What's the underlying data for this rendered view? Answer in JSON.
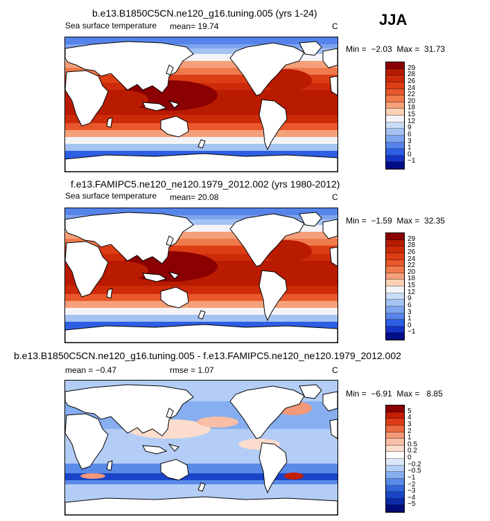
{
  "season": "JJA",
  "panels": [
    {
      "title": "b.e13.B1850C5CN.ne120_g16.tuning.005 (yrs 1-24)",
      "variable": "Sea surface temperature",
      "stat1": "mean=   19.74",
      "stat2": "",
      "units": "C",
      "minmax": "Min =  −2.03  Max =  31.73",
      "colorbar": {
        "labels": [
          "29",
          "28",
          "26",
          "24",
          "22",
          "20",
          "18",
          "15",
          "12",
          "9",
          "6",
          "3",
          "1",
          "0",
          "−1"
        ],
        "colors": [
          "#8b0000",
          "#b81b00",
          "#cc2a08",
          "#dd3d14",
          "#e8582c",
          "#ef7a4c",
          "#f5a07a",
          "#fbd0b4",
          "#f3f3f8",
          "#c9dcf6",
          "#a4c2f2",
          "#7ea4ee",
          "#5684ea",
          "#2e5ee4",
          "#1733c6",
          "#000e8a"
        ]
      },
      "type": "abs"
    },
    {
      "title": "f.e13.FAMIPC5.ne120_ne120.1979_2012.002 (yrs 1980-2012)",
      "variable": "Sea surface temperature",
      "stat1": "mean=   20.08",
      "stat2": "",
      "units": "C",
      "minmax": "Min =  −1.59  Max =  32.35",
      "colorbar": {
        "labels": [
          "29",
          "28",
          "26",
          "24",
          "22",
          "20",
          "18",
          "15",
          "12",
          "9",
          "6",
          "3",
          "1",
          "0",
          "−1"
        ],
        "colors": [
          "#8b0000",
          "#b81b00",
          "#cc2a08",
          "#dd3d14",
          "#e8582c",
          "#ef7a4c",
          "#f5a07a",
          "#fbd0b4",
          "#f3f3f8",
          "#c9dcf6",
          "#a4c2f2",
          "#7ea4ee",
          "#5684ea",
          "#2e5ee4",
          "#1733c6",
          "#000e8a"
        ]
      },
      "type": "abs"
    },
    {
      "title": "b.e13.B1850C5CN.ne120_g16.tuning.005 - f.e13.FAMIPC5.ne120_ne120.1979_2012.002",
      "variable": "",
      "stat1": "mean =   −0.47",
      "stat2": "rmse =    1.07",
      "units": "C",
      "minmax": "Min =  −6.91  Max =   8.85",
      "colorbar": {
        "labels": [
          "5",
          "4",
          "3",
          "2",
          "1",
          "0.5",
          "0.2",
          "0",
          "−0.2",
          "−0.5",
          "−1",
          "−2",
          "−3",
          "−4",
          "−5"
        ],
        "colors": [
          "#8b0000",
          "#c41e00",
          "#de3c18",
          "#ec6a40",
          "#f39878",
          "#f8bea6",
          "#fcdccc",
          "#ffffff",
          "#dce8fa",
          "#b3cdf6",
          "#86aef0",
          "#5a8ae8",
          "#3266dc",
          "#1a44c8",
          "#0c2aa8",
          "#000a7a"
        ]
      },
      "type": "diff"
    }
  ]
}
